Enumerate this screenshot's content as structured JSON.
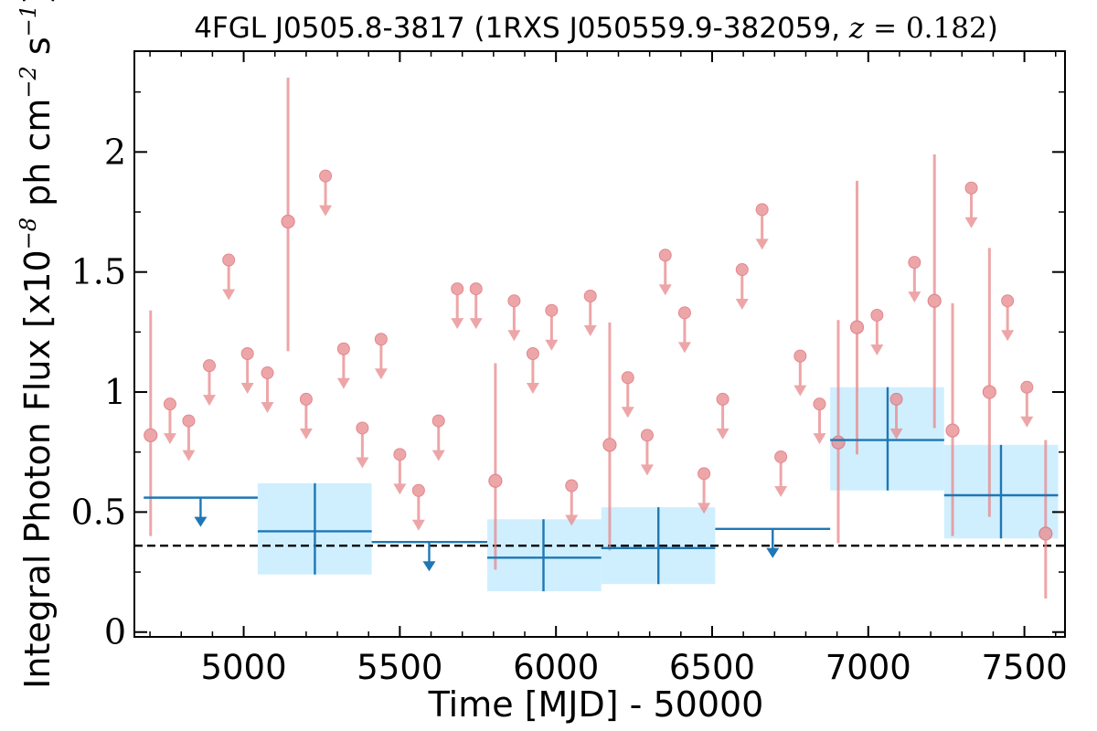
{
  "chart_data": {
    "type": "scatter",
    "title": {
      "source": "4FGL J0505.8-3817",
      "assoc": "1RXS J050559.9-382059",
      "redshift_var": "z",
      "redshift_eq": " = ",
      "redshift_val": "0.182"
    },
    "xlabel": "Time [MJD] - 50000",
    "ylabel": {
      "pre": "Integral Photon Flux [x10",
      "exp1": "−8",
      "mid": " ph cm",
      "exp2": "−2",
      "mid2": " s",
      "exp3": "−1",
      "post": "]"
    },
    "xlim": [
      4650,
      7630
    ],
    "ylim": [
      -0.02,
      2.42
    ],
    "xticks": [
      5000,
      5500,
      6000,
      6500,
      7000,
      7500
    ],
    "xtick_labels": [
      "5000",
      "5500",
      "6000",
      "6500",
      "7000",
      "7500"
    ],
    "yticks": [
      0,
      0.5,
      1,
      1.5,
      2
    ],
    "ytick_labels": [
      "0",
      "0.5",
      "1",
      "1.5",
      "2"
    ],
    "reference_line": {
      "y": 0.36,
      "style": "dashed",
      "color": "#000000"
    },
    "colors": {
      "short_bins": "#e8898b",
      "long_bins": "#1f77b4",
      "band": "#cceeff"
    },
    "series": [
      {
        "style": "short-bin points",
        "detections": [
          {
            "x": 4702,
            "y": 0.82,
            "ylo": 0.4,
            "yhi": 1.34
          },
          {
            "x": 5142,
            "y": 1.71,
            "ylo": 1.17,
            "yhi": 2.31
          },
          {
            "x": 5806,
            "y": 0.63,
            "ylo": 0.26,
            "yhi": 1.12
          },
          {
            "x": 6172,
            "y": 0.78,
            "ylo": 0.34,
            "yhi": 1.29
          },
          {
            "x": 6904,
            "y": 0.79,
            "ylo": 0.37,
            "yhi": 1.3
          },
          {
            "x": 6964,
            "y": 1.27,
            "ylo": 0.74,
            "yhi": 1.88
          },
          {
            "x": 7212,
            "y": 1.38,
            "ylo": 0.85,
            "yhi": 1.99
          },
          {
            "x": 7270,
            "y": 0.84,
            "ylo": 0.4,
            "yhi": 1.37
          },
          {
            "x": 7388,
            "y": 1.0,
            "ylo": 0.48,
            "yhi": 1.6
          },
          {
            "x": 7568,
            "y": 0.41,
            "ylo": 0.14,
            "yhi": 0.8
          }
        ],
        "upper_limits": [
          {
            "x": 4764,
            "y": 0.95
          },
          {
            "x": 4824,
            "y": 0.88
          },
          {
            "x": 4890,
            "y": 1.11
          },
          {
            "x": 4952,
            "y": 1.55
          },
          {
            "x": 5012,
            "y": 1.16
          },
          {
            "x": 5076,
            "y": 1.08
          },
          {
            "x": 5200,
            "y": 0.97
          },
          {
            "x": 5262,
            "y": 1.9
          },
          {
            "x": 5320,
            "y": 1.18
          },
          {
            "x": 5380,
            "y": 0.85
          },
          {
            "x": 5440,
            "y": 1.22
          },
          {
            "x": 5500,
            "y": 0.74
          },
          {
            "x": 5560,
            "y": 0.59
          },
          {
            "x": 5624,
            "y": 0.88
          },
          {
            "x": 5684,
            "y": 1.43
          },
          {
            "x": 5744,
            "y": 1.43
          },
          {
            "x": 5866,
            "y": 1.38
          },
          {
            "x": 5926,
            "y": 1.16
          },
          {
            "x": 5986,
            "y": 1.34
          },
          {
            "x": 6050,
            "y": 0.61
          },
          {
            "x": 6110,
            "y": 1.4
          },
          {
            "x": 6230,
            "y": 1.06
          },
          {
            "x": 6292,
            "y": 0.82
          },
          {
            "x": 6350,
            "y": 1.57
          },
          {
            "x": 6412,
            "y": 1.33
          },
          {
            "x": 6474,
            "y": 0.66
          },
          {
            "x": 6534,
            "y": 0.97
          },
          {
            "x": 6596,
            "y": 1.51
          },
          {
            "x": 6660,
            "y": 1.76
          },
          {
            "x": 6720,
            "y": 0.73
          },
          {
            "x": 6782,
            "y": 1.15
          },
          {
            "x": 6844,
            "y": 0.95
          },
          {
            "x": 7028,
            "y": 1.32
          },
          {
            "x": 7090,
            "y": 0.97
          },
          {
            "x": 7148,
            "y": 1.54
          },
          {
            "x": 7330,
            "y": 1.85
          },
          {
            "x": 7446,
            "y": 1.38
          },
          {
            "x": 7508,
            "y": 1.02
          }
        ]
      },
      {
        "style": "long-bin points",
        "detections": [
          {
            "x0": 5045,
            "x1": 5410,
            "xc": 5228,
            "y": 0.42,
            "ylo": 0.24,
            "yhi": 0.62
          },
          {
            "x0": 5780,
            "x1": 6145,
            "xc": 5960,
            "y": 0.31,
            "ylo": 0.17,
            "yhi": 0.47
          },
          {
            "x0": 6145,
            "x1": 6510,
            "xc": 6328,
            "y": 0.35,
            "ylo": 0.2,
            "yhi": 0.52
          },
          {
            "x0": 6878,
            "x1": 7243,
            "xc": 7062,
            "y": 0.8,
            "ylo": 0.59,
            "yhi": 1.02
          },
          {
            "x0": 7243,
            "x1": 7608,
            "xc": 7425,
            "y": 0.57,
            "ylo": 0.39,
            "yhi": 0.78
          }
        ],
        "upper_limits": [
          {
            "x0": 4680,
            "x1": 5045,
            "xc": 4862,
            "y": 0.56
          },
          {
            "x0": 5410,
            "x1": 5780,
            "xc": 5594,
            "y": 0.375
          },
          {
            "x0": 6510,
            "x1": 6878,
            "xc": 6694,
            "y": 0.43
          }
        ]
      }
    ]
  }
}
